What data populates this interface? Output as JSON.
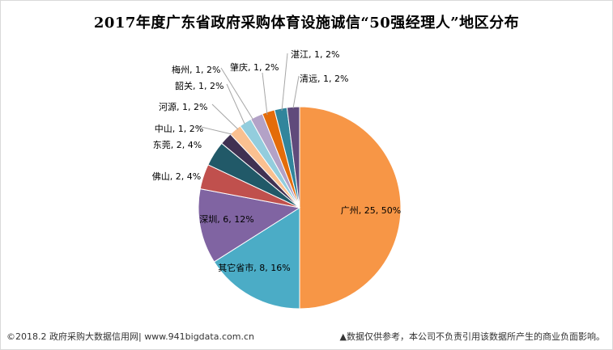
{
  "chart_data": {
    "type": "pie",
    "title": "2017年度广东省政府采购体育设施诚信“50强经理人”地区分布",
    "slices": [
      {
        "label": "广州, 25, 50%",
        "value": 25,
        "color": "#F79646"
      },
      {
        "label": "其它省市, 8, 16%",
        "value": 8,
        "color": "#4BACC6"
      },
      {
        "label": "深圳, 6, 12%",
        "value": 6,
        "color": "#8064A2"
      },
      {
        "label": "佛山, 2, 4%",
        "value": 2,
        "color": "#C0504D"
      },
      {
        "label": "东莞, 2, 4%",
        "value": 2,
        "color": "#215968"
      },
      {
        "label": "中山, 1, 2%",
        "value": 1,
        "color": "#403152"
      },
      {
        "label": "河源, 1, 2%",
        "value": 1,
        "color": "#FAC090"
      },
      {
        "label": "韶关, 1, 2%",
        "value": 1,
        "color": "#93CDDD"
      },
      {
        "label": "梅州, 1, 2%",
        "value": 1,
        "color": "#B3A2C7"
      },
      {
        "label": "肇庆, 1, 2%",
        "value": 1,
        "color": "#E46C0A"
      },
      {
        "label": "湛江, 1, 2%",
        "value": 1,
        "color": "#31859C"
      },
      {
        "label": "清远, 1, 2%",
        "value": 1,
        "color": "#604A7B"
      }
    ]
  },
  "footer": {
    "source": "©2018.2 政府采购大数据信用网| www.941bigdata.com.cn",
    "disclaimer": "▲数据仅供参考，本公司不负责引用该数据所产生的商业负面影响。"
  }
}
